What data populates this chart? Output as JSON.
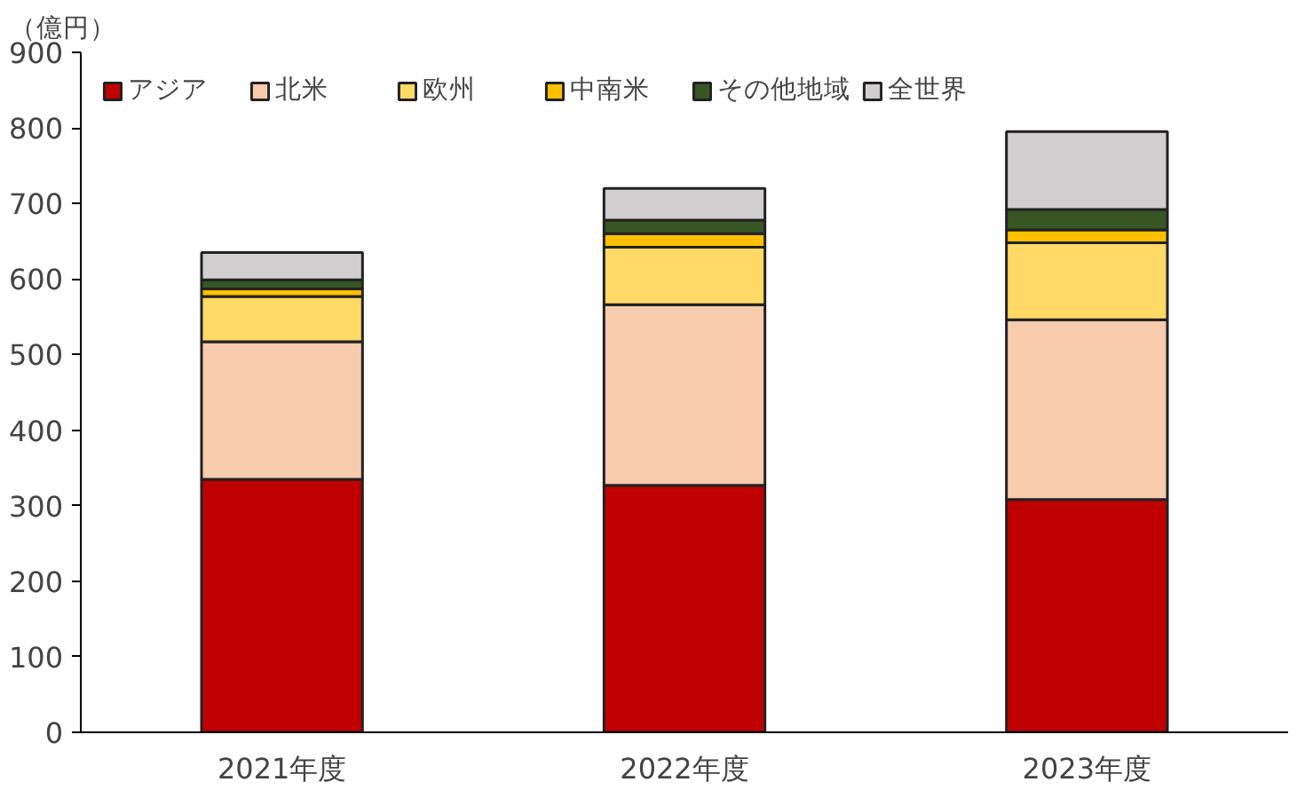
{
  "chart_data": {
    "type": "bar",
    "stacked": true,
    "ylabel": "（億円）",
    "categories": [
      "2021年度",
      "2022年度",
      "2023年度"
    ],
    "series": [
      {
        "name": "アジア",
        "color": "#c00000",
        "values": [
          335,
          327,
          308
        ]
      },
      {
        "name": "北米",
        "color": "#f8cbad",
        "values": [
          182,
          239,
          238
        ]
      },
      {
        "name": "欧州",
        "color": "#ffd966",
        "values": [
          60,
          76,
          102
        ]
      },
      {
        "name": "中南米",
        "color": "#ffc000",
        "values": [
          10,
          18,
          17
        ]
      },
      {
        "name": "その他地域",
        "color": "#375623",
        "values": [
          12,
          18,
          27
        ]
      },
      {
        "name": "全世界",
        "color": "#d0cece",
        "values": [
          36,
          42,
          103
        ]
      }
    ],
    "ylim": [
      0,
      900
    ],
    "yticks": [
      0,
      100,
      200,
      300,
      400,
      500,
      600,
      700,
      800,
      900
    ],
    "grid": false,
    "legend": "top"
  }
}
